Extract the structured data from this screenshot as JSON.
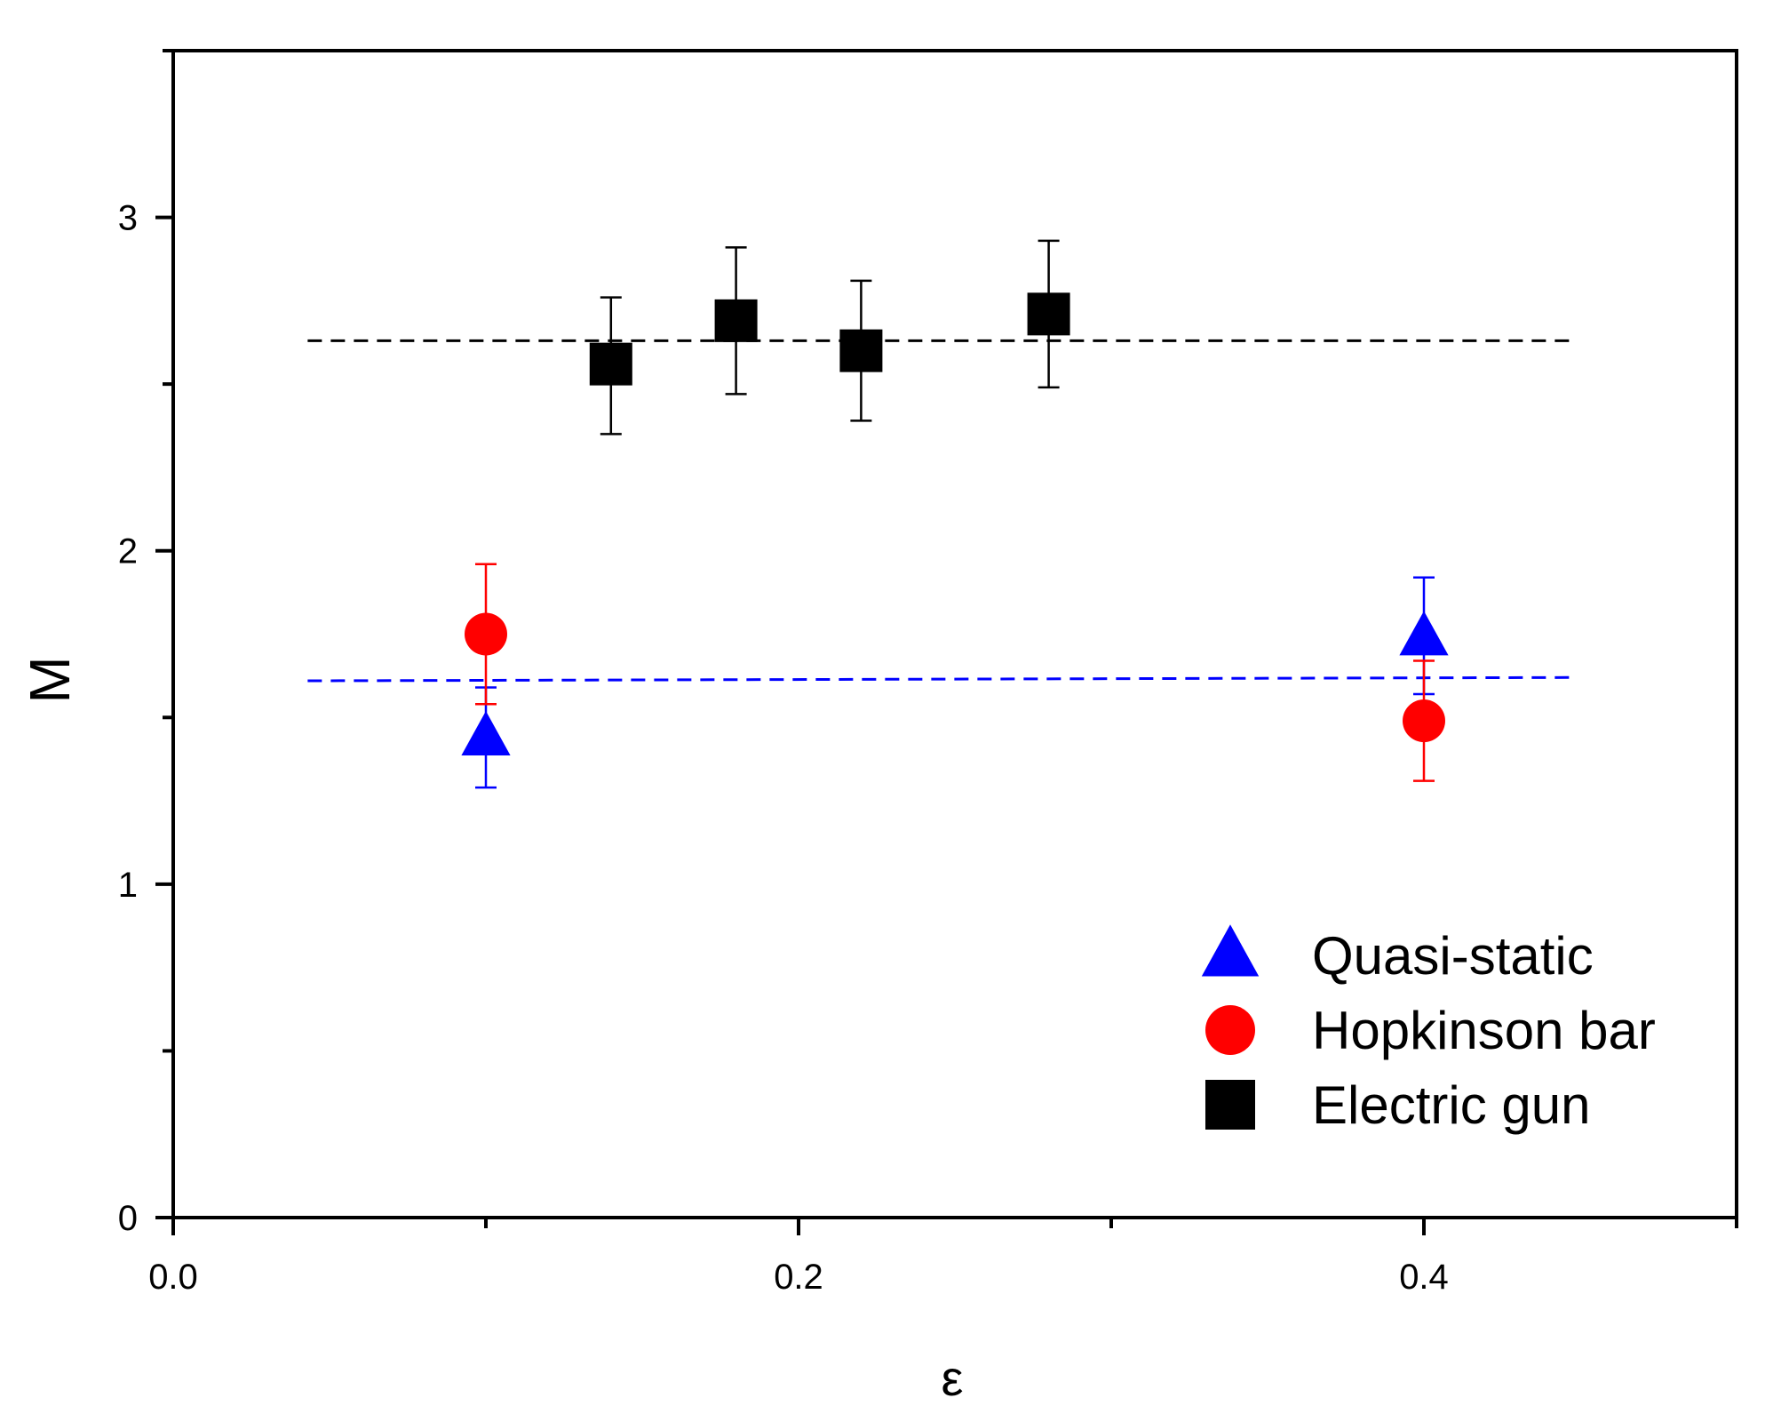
{
  "chart_data": {
    "type": "scatter",
    "title": "",
    "xlabel": "ε",
    "ylabel": "M",
    "xlim": [
      0.0,
      0.5
    ],
    "ylim": [
      0,
      3.5
    ],
    "x_ticks": [
      "0.0",
      "0.2",
      "0.4"
    ],
    "x_tick_values": [
      0.0,
      0.2,
      0.4
    ],
    "x_minor_ticks": [
      0.1,
      0.3,
      0.5
    ],
    "y_ticks": [
      "0",
      "1",
      "2",
      "3"
    ],
    "y_tick_values": [
      0,
      1,
      2,
      3
    ],
    "y_minor_ticks": [
      0.5,
      1.5,
      2.5,
      3.5
    ],
    "grid": false,
    "legend_position": "bottom-right",
    "series": [
      {
        "name": "Quasi-static",
        "marker": "triangle",
        "color": "#0000FF",
        "points": [
          {
            "x": 0.1,
            "y": 1.44,
            "err_low": 0.15,
            "err_high": 0.15
          },
          {
            "x": 0.4,
            "y": 1.74,
            "err_low": 0.17,
            "err_high": 0.18
          }
        ]
      },
      {
        "name": "Hopkinson bar",
        "marker": "circle",
        "color": "#FF0000",
        "points": [
          {
            "x": 0.1,
            "y": 1.75,
            "err_low": 0.21,
            "err_high": 0.21
          },
          {
            "x": 0.4,
            "y": 1.49,
            "err_low": 0.18,
            "err_high": 0.18
          }
        ]
      },
      {
        "name": "Electric gun",
        "marker": "square",
        "color": "#000000",
        "points": [
          {
            "x": 0.14,
            "y": 2.56,
            "err_low": 0.21,
            "err_high": 0.2
          },
          {
            "x": 0.18,
            "y": 2.69,
            "err_low": 0.22,
            "err_high": 0.22
          },
          {
            "x": 0.22,
            "y": 2.6,
            "err_low": 0.21,
            "err_high": 0.21
          },
          {
            "x": 0.28,
            "y": 2.71,
            "err_low": 0.22,
            "err_high": 0.22
          }
        ]
      }
    ],
    "reference_lines": [
      {
        "name": "electric-gun-mean",
        "style": "dashed",
        "color": "#000000",
        "x": [
          0.043,
          0.447
        ],
        "y": [
          2.63,
          2.63
        ]
      },
      {
        "name": "low-rate-mean",
        "style": "dashed",
        "color": "#0000FF",
        "x": [
          0.043,
          0.447
        ],
        "y": [
          1.61,
          1.62
        ]
      }
    ]
  }
}
